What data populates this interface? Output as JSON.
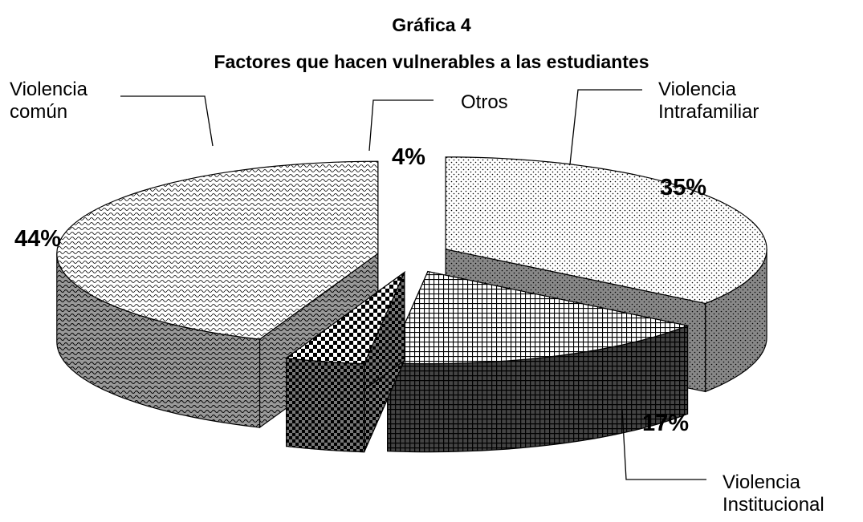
{
  "chart_data": {
    "type": "pie3d",
    "title": "Gráfica 4",
    "subtitle": "Factores que hacen vulnerables a las estudiantes",
    "categories": [
      "Violencia Intrafamiliar",
      "Violencia Institucional",
      "Otros",
      "Violencia común"
    ],
    "values": [
      35,
      17,
      4,
      44
    ],
    "value_labels": [
      "35%",
      "17%",
      "4%",
      "44%"
    ]
  }
}
